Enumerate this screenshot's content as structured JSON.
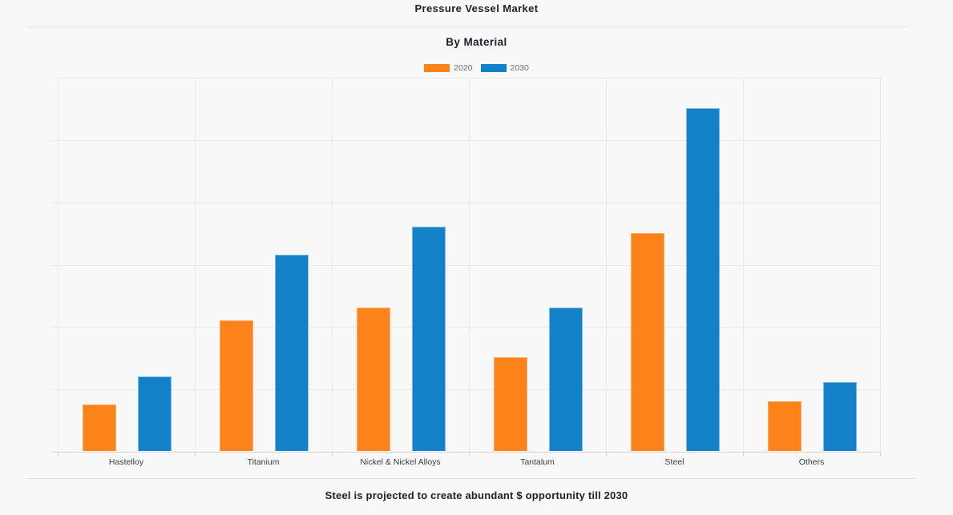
{
  "header": {
    "title": "Pressure Vessel Market",
    "subtitle": "By Material"
  },
  "footer": {
    "note": "Steel is projected to create abundant $ opportunity till 2030"
  },
  "colors": {
    "background": "#f8f8f8",
    "series_2020": "#fb8319",
    "series_2030": "#1381c8",
    "gridline": "#e9e9e9",
    "axis_line": "#d2d2d2",
    "heading_text": "#20202f",
    "category_text": "#3c3c3c",
    "legend_text": "#6f6f6f"
  },
  "chart_data": {
    "type": "bar",
    "title": "Pressure Vessel Market",
    "subtitle": "By Material",
    "categories": [
      "Hastelloy",
      "Titanium",
      "Nickel & Nickel Alloys",
      "Tantalum",
      "Steel",
      "Others"
    ],
    "series": [
      {
        "name": "2020",
        "color": "#fb8319",
        "border_color": "#fcaa64",
        "values": [
          7.5,
          21,
          23,
          15,
          35,
          8
        ]
      },
      {
        "name": "2030",
        "color": "#1381c8",
        "border_color": "#7fbbe4",
        "values": [
          12,
          31.5,
          36,
          23,
          55,
          11
        ]
      }
    ],
    "ylim": [
      0,
      60
    ],
    "gridline_step": 10,
    "grid": true,
    "xlabel": "",
    "ylabel": "",
    "y_axis_tick_labels": "none shown; values estimated from gridlines in relative units (10 per gridline)",
    "legend_position": "top-center",
    "note": "Steel is projected to create abundant $ opportunity till 2030"
  }
}
